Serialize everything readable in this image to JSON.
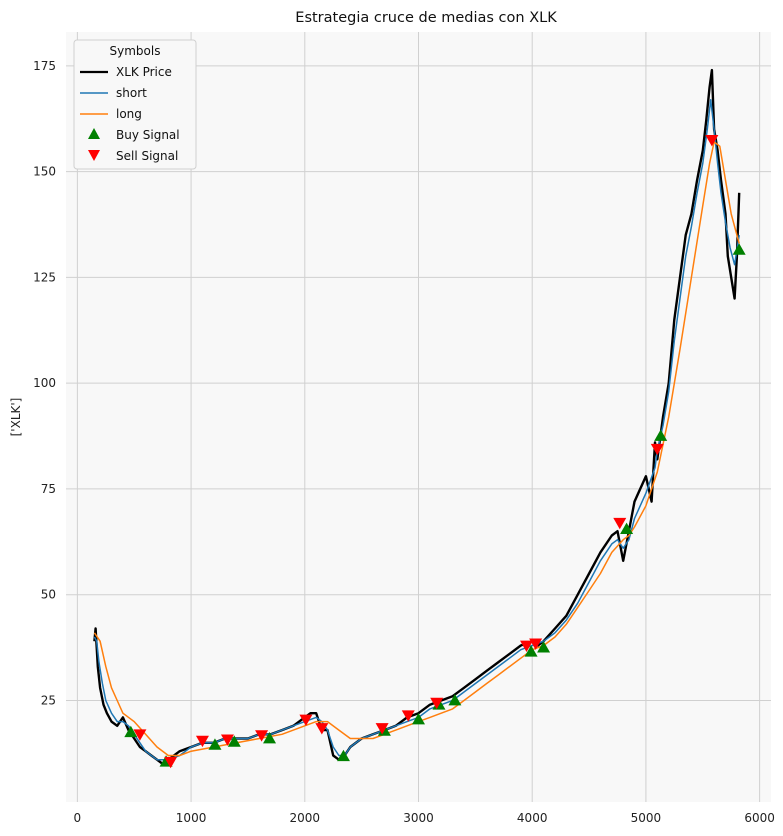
{
  "chart_data": {
    "type": "line",
    "title": "Estrategia cruce de medias con XLK",
    "xlabel": "",
    "ylabel": "['XLK']",
    "xlim": [
      -100,
      6100
    ],
    "ylim": [
      1,
      183
    ],
    "xticks": [
      0,
      1000,
      2000,
      3000,
      4000,
      5000,
      6000
    ],
    "yticks": [
      25,
      50,
      75,
      100,
      125,
      150,
      175
    ],
    "grid": true,
    "legend": {
      "title": "Symbols",
      "placement": "top-left",
      "entries": [
        "XLK Price",
        "short",
        "long",
        "Buy Signal",
        "Sell Signal"
      ]
    },
    "colors": {
      "price": "#000000",
      "short": "#1f77b4",
      "long": "#ff7f0e",
      "buy": "#008000",
      "sell": "#ff0000",
      "plot_bg": "#f8f8f8",
      "grid": "#d0d0d0"
    },
    "series": [
      {
        "name": "XLK Price",
        "x": [
          150,
          160,
          180,
          200,
          230,
          260,
          300,
          350,
          400,
          450,
          500,
          550,
          600,
          650,
          700,
          750,
          800,
          850,
          900,
          1000,
          1100,
          1200,
          1300,
          1400,
          1500,
          1600,
          1700,
          1800,
          1900,
          2000,
          2050,
          2100,
          2150,
          2200,
          2250,
          2300,
          2350,
          2400,
          2500,
          2600,
          2700,
          2800,
          2900,
          3000,
          3100,
          3200,
          3300,
          3400,
          3500,
          3600,
          3700,
          3800,
          3900,
          4000,
          4050,
          4100,
          4200,
          4300,
          4400,
          4500,
          4600,
          4700,
          4750,
          4800,
          4850,
          4900,
          5000,
          5050,
          5080,
          5100,
          5150,
          5200,
          5250,
          5300,
          5350,
          5400,
          5450,
          5500,
          5530,
          5560,
          5580,
          5600,
          5630,
          5660,
          5700,
          5720,
          5750,
          5780,
          5800,
          5820
        ],
        "values": [
          39,
          42,
          33,
          28,
          24,
          22,
          20,
          19,
          21,
          18,
          16,
          14,
          13,
          12,
          11,
          10,
          11,
          12,
          13,
          14,
          15,
          15,
          16,
          16,
          16,
          17,
          17,
          18,
          19,
          21,
          22,
          22,
          18,
          18,
          12,
          11,
          12,
          14,
          16,
          17,
          18,
          19,
          21,
          22,
          24,
          25,
          26,
          28,
          30,
          32,
          34,
          36,
          38,
          39,
          38,
          39,
          42,
          45,
          50,
          55,
          60,
          64,
          65,
          58,
          65,
          72,
          78,
          72,
          86,
          82,
          92,
          100,
          115,
          125,
          135,
          140,
          148,
          155,
          162,
          170,
          174,
          160,
          155,
          148,
          140,
          130,
          125,
          120,
          130,
          145
        ]
      },
      {
        "name": "short",
        "x": [
          150,
          170,
          190,
          220,
          250,
          300,
          350,
          400,
          450,
          500,
          550,
          600,
          650,
          700,
          800,
          900,
          1000,
          1100,
          1200,
          1300,
          1400,
          1500,
          1600,
          1700,
          1800,
          1900,
          2000,
          2100,
          2150,
          2200,
          2250,
          2300,
          2350,
          2400,
          2500,
          2600,
          2700,
          2800,
          2900,
          3000,
          3100,
          3200,
          3300,
          3400,
          3500,
          3600,
          3700,
          3800,
          3900,
          4000,
          4100,
          4200,
          4300,
          4400,
          4500,
          4600,
          4700,
          4750,
          4800,
          4850,
          4900,
          5000,
          5080,
          5100,
          5150,
          5200,
          5250,
          5300,
          5350,
          5400,
          5450,
          5500,
          5540,
          5570,
          5600,
          5630,
          5660,
          5700,
          5740,
          5780,
          5820
        ],
        "values": [
          40,
          39,
          34,
          29,
          25,
          22,
          20,
          20,
          19,
          17,
          15,
          13,
          12,
          11,
          11,
          12,
          14,
          15,
          15,
          16,
          16,
          16,
          17,
          17,
          18,
          19,
          20,
          21,
          20,
          18,
          14,
          12,
          12,
          14,
          16,
          17,
          18,
          19,
          20,
          21,
          23,
          24,
          25,
          27,
          29,
          31,
          33,
          35,
          37,
          38,
          39,
          41,
          44,
          48,
          53,
          58,
          62,
          63,
          61,
          63,
          68,
          74,
          80,
          84,
          90,
          98,
          110,
          120,
          130,
          137,
          145,
          152,
          160,
          167,
          160,
          152,
          145,
          138,
          132,
          128,
          135
        ]
      },
      {
        "name": "long",
        "x": [
          150,
          200,
          250,
          300,
          350,
          400,
          500,
          600,
          700,
          800,
          900,
          1000,
          1200,
          1400,
          1600,
          1800,
          2000,
          2100,
          2200,
          2300,
          2400,
          2500,
          2600,
          2700,
          2800,
          2900,
          3000,
          3100,
          3200,
          3300,
          3400,
          3500,
          3600,
          3700,
          3800,
          3900,
          4000,
          4100,
          4200,
          4300,
          4400,
          4500,
          4600,
          4700,
          4800,
          4850,
          4900,
          5000,
          5100,
          5200,
          5300,
          5400,
          5500,
          5560,
          5600,
          5650,
          5700,
          5750,
          5800,
          5820
        ],
        "values": [
          41,
          39,
          33,
          28,
          25,
          22,
          20,
          17,
          14,
          12,
          12,
          13,
          14,
          15,
          16,
          17,
          19,
          20,
          20,
          18,
          16,
          16,
          16,
          17,
          18,
          19,
          20,
          21,
          22,
          23,
          25,
          27,
          29,
          31,
          33,
          35,
          37,
          38,
          40,
          43,
          47,
          51,
          55,
          60,
          63,
          64,
          66,
          71,
          79,
          92,
          108,
          125,
          142,
          152,
          157,
          156,
          148,
          140,
          135,
          133
        ]
      }
    ],
    "buy_signals": {
      "x": [
        470,
        780,
        1210,
        1380,
        1690,
        2340,
        2700,
        3000,
        3180,
        3320,
        3990,
        4100,
        4830,
        5130,
        5820
      ],
      "values": [
        17.5,
        10.5,
        14.5,
        15.2,
        16.0,
        11.8,
        17.8,
        20.5,
        24.0,
        25.0,
        36.5,
        37.5,
        65.5,
        87.5,
        131.5
      ]
    },
    "sell_signals": {
      "x": [
        550,
        820,
        1100,
        1320,
        1620,
        2010,
        2150,
        2680,
        2910,
        3160,
        3950,
        4030,
        4770,
        5100,
        5580
      ],
      "values": [
        17.0,
        10.5,
        15.5,
        15.8,
        16.8,
        20.5,
        18.5,
        18.5,
        21.5,
        24.5,
        38.0,
        38.5,
        67.0,
        84.5,
        157.5
      ]
    }
  }
}
